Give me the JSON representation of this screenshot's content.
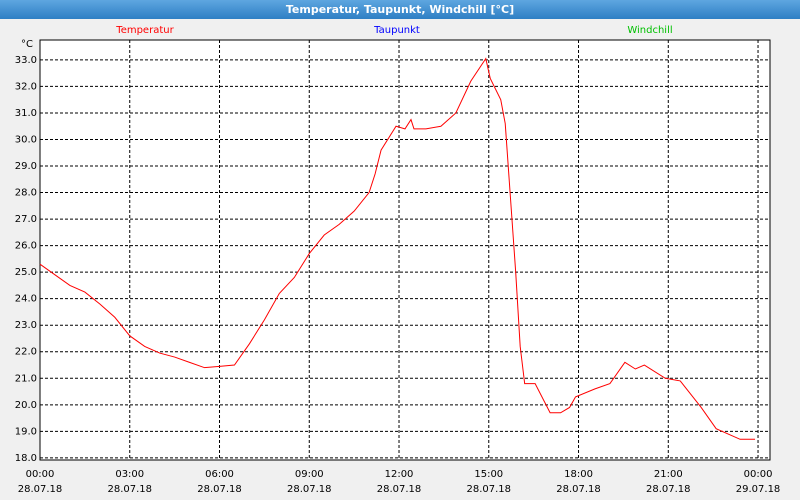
{
  "chart_data": {
    "type": "line",
    "title": "Temperatur, Taupunkt, Windchill [°C]",
    "y_label": "°C",
    "x": [
      0,
      0.5,
      1,
      1.5,
      2,
      2.5,
      3,
      3.5,
      4,
      4.5,
      5,
      5.5,
      6,
      6.5,
      7,
      7.5,
      8,
      8.5,
      9,
      9.5,
      10,
      10.5,
      11,
      11.2,
      11.4,
      11.9,
      12.2,
      12.4,
      12.5,
      12.9,
      13.4,
      13.9,
      14.4,
      14.9,
      15.05,
      15.4,
      15.55,
      15.9,
      16.05,
      16.2,
      16.55,
      17.05,
      17.4,
      17.7,
      17.9,
      18.55,
      19.05,
      19.55,
      19.9,
      20.2,
      20.9,
      21.4,
      22.1,
      22.6,
      23.4,
      23.9
    ],
    "series": [
      {
        "name": "Temperatur",
        "color": "#ff0000",
        "values": [
          25.3,
          24.9,
          24.5,
          24.25,
          23.8,
          23.3,
          22.6,
          22.2,
          21.95,
          21.8,
          21.6,
          21.4,
          21.45,
          21.5,
          22.3,
          23.2,
          24.2,
          24.8,
          25.7,
          26.4,
          26.8,
          27.3,
          28.0,
          28.7,
          29.6,
          30.5,
          30.4,
          30.75,
          30.4,
          30.4,
          30.5,
          31.0,
          32.2,
          33.05,
          32.3,
          31.5,
          30.6,
          25.0,
          22.2,
          20.8,
          20.8,
          19.7,
          19.7,
          19.9,
          20.3,
          20.6,
          20.8,
          21.6,
          21.35,
          21.5,
          21.0,
          20.9,
          19.9,
          19.1,
          18.7,
          18.7
        ]
      },
      {
        "name": "Taupunkt",
        "color": "#0000ff",
        "values": [
          null,
          null,
          null,
          null,
          null,
          null,
          null,
          null,
          null,
          null,
          null,
          null,
          null,
          null,
          null,
          null,
          null,
          null,
          null,
          null,
          null,
          null,
          null,
          null,
          null,
          null,
          null,
          null,
          null,
          null,
          null,
          null,
          null,
          null,
          null,
          null,
          null,
          null,
          null,
          null,
          null,
          null,
          null,
          null,
          null,
          null,
          null,
          null,
          null,
          null,
          null,
          null,
          null,
          null,
          null,
          null
        ]
      },
      {
        "name": "Windchill",
        "color": "#00c000",
        "values": [
          null,
          null,
          null,
          null,
          null,
          null,
          null,
          null,
          null,
          null,
          null,
          null,
          null,
          null,
          null,
          null,
          null,
          null,
          null,
          null,
          null,
          null,
          null,
          null,
          null,
          null,
          null,
          null,
          null,
          null,
          null,
          null,
          null,
          null,
          null,
          null,
          null,
          null,
          null,
          null,
          null,
          null,
          null,
          null,
          null,
          null,
          null,
          null,
          null,
          null,
          null,
          null,
          null,
          null,
          null,
          null
        ]
      }
    ],
    "xlim": [
      0,
      24.4
    ],
    "xticks": [
      {
        "value": 0,
        "label": "00:00"
      },
      {
        "value": 3,
        "label": "03:00"
      },
      {
        "value": 6,
        "label": "06:00"
      },
      {
        "value": 9,
        "label": "09:00"
      },
      {
        "value": 12,
        "label": "12:00"
      },
      {
        "value": 15,
        "label": "15:00"
      },
      {
        "value": 18,
        "label": "18:00"
      },
      {
        "value": 21,
        "label": "21:00"
      },
      {
        "value": 24,
        "label": "00:00"
      }
    ],
    "xtick_dates": [
      "28.07.18",
      "28.07.18",
      "28.07.18",
      "28.07.18",
      "28.07.18",
      "28.07.18",
      "28.07.18",
      "28.07.18",
      "29.07.18"
    ],
    "ylim": [
      17.92,
      33.75
    ],
    "yticks": [
      {
        "value": 18,
        "label": "18.0"
      },
      {
        "value": 19,
        "label": "19.0"
      },
      {
        "value": 20,
        "label": "20.0"
      },
      {
        "value": 21,
        "label": "21.0"
      },
      {
        "value": 22,
        "label": "22.0"
      },
      {
        "value": 23,
        "label": "23.0"
      },
      {
        "value": 24,
        "label": "24.0"
      },
      {
        "value": 25,
        "label": "25.0"
      },
      {
        "value": 26,
        "label": "26.0"
      },
      {
        "value": 27,
        "label": "27.0"
      },
      {
        "value": 28,
        "label": "28.0"
      },
      {
        "value": 29,
        "label": "29.0"
      },
      {
        "value": 30,
        "label": "30.0"
      },
      {
        "value": 31,
        "label": "31.0"
      },
      {
        "value": 32,
        "label": "32.0"
      },
      {
        "value": 33,
        "label": "33.0"
      }
    ],
    "grid": true
  }
}
